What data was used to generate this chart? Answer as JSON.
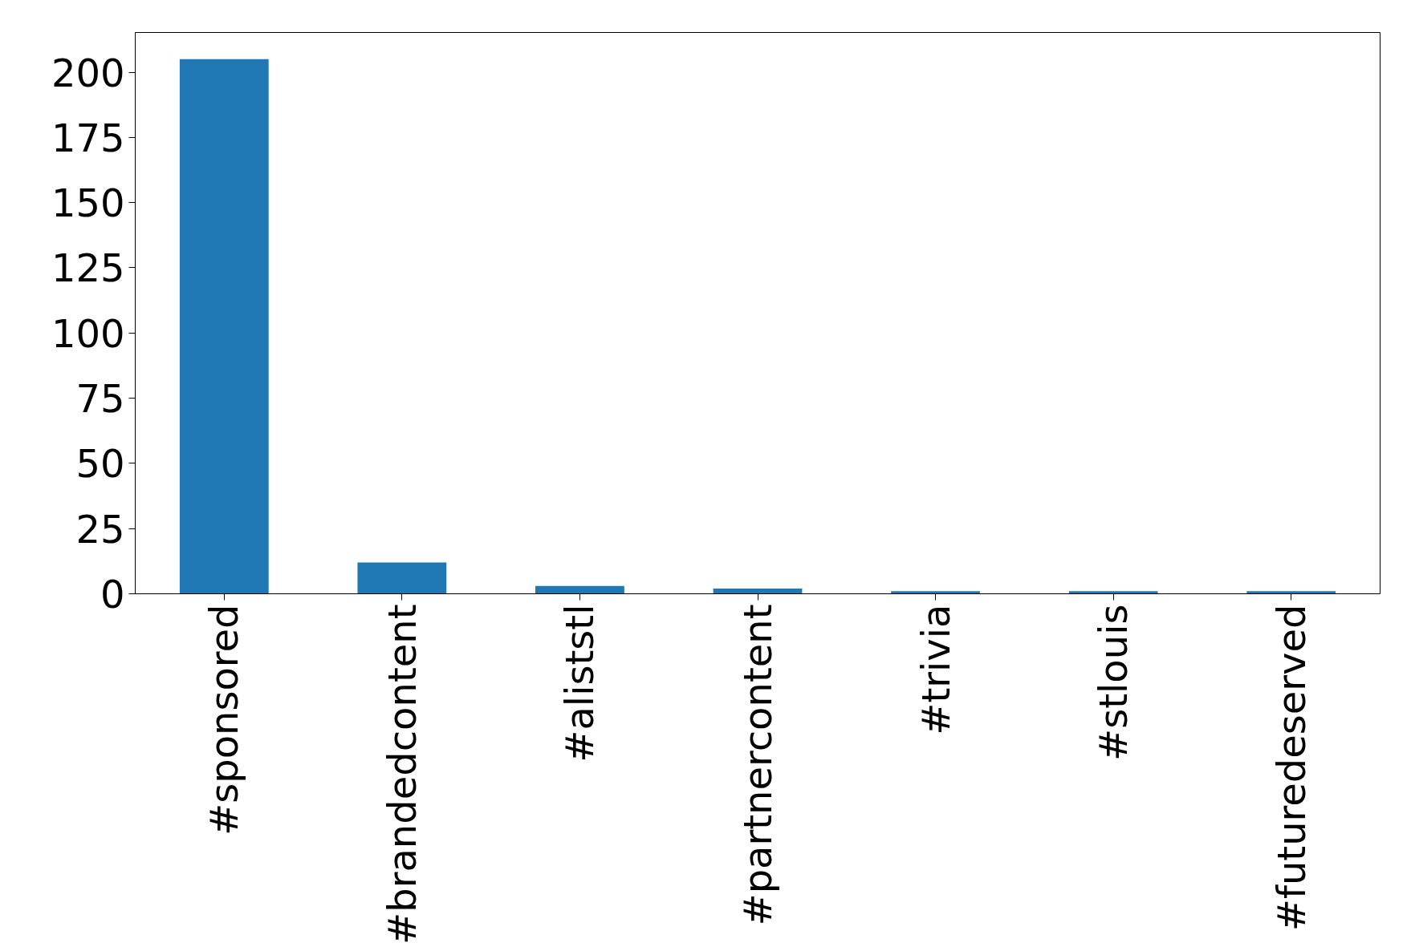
{
  "chart_data": {
    "type": "bar",
    "categories": [
      "#sponsored",
      "#brandedcontent",
      "#aliststl",
      "#partnercontent",
      "#trivia",
      "#stlouis",
      "#futuredeserved"
    ],
    "values": [
      205,
      12,
      3,
      2,
      1,
      1,
      1
    ],
    "color": "#1f77b4",
    "ylim": [
      0,
      215.25
    ],
    "yticks": [
      0,
      25,
      50,
      75,
      100,
      125,
      150,
      175,
      200
    ]
  }
}
